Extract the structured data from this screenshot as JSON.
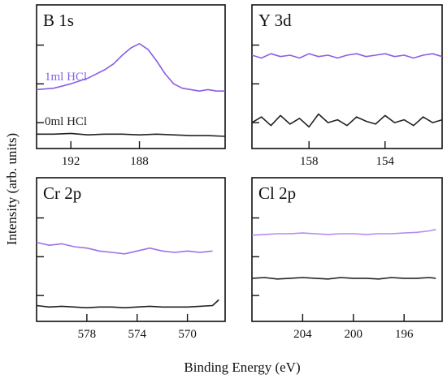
{
  "figure": {
    "ylabel": "Intensity (arb. units)",
    "xlabel": "Binding Energy (eV)"
  },
  "colors": {
    "purple": "#8a5fe6",
    "purple_light": "#b48cf0",
    "black": "#222222"
  },
  "chart_data": [
    {
      "type": "line",
      "title": "B 1s",
      "xlim": [
        194,
        183
      ],
      "ylim": [
        0,
        10
      ],
      "xticks": [
        192,
        188
      ],
      "annotations": [
        {
          "text": "1ml HCl",
          "color": "#8a5fe6"
        },
        {
          "text": "0ml  HCl",
          "color": "#222222"
        }
      ],
      "series": [
        {
          "name": "1ml HCl",
          "color": "#8a5fe6",
          "x": [
            194,
            193,
            192,
            191,
            190,
            189.5,
            189,
            188.5,
            188,
            187.5,
            187,
            186.5,
            186,
            185.5,
            185,
            184.5,
            184,
            183.5,
            183
          ],
          "y": [
            4.1,
            4.2,
            4.5,
            4.9,
            5.5,
            5.9,
            6.5,
            7.0,
            7.3,
            6.9,
            6.1,
            5.2,
            4.5,
            4.2,
            4.1,
            4.0,
            4.1,
            4.0,
            4.0
          ]
        },
        {
          "name": "0ml  HCl",
          "color": "#222222",
          "x": [
            194,
            193,
            192,
            191,
            190,
            189,
            188,
            187,
            186,
            185,
            184,
            183
          ],
          "y": [
            1.0,
            1.0,
            1.05,
            0.95,
            1.0,
            1.0,
            0.95,
            1.0,
            0.95,
            0.9,
            0.9,
            0.85
          ]
        }
      ]
    },
    {
      "type": "line",
      "title": "Y 3d",
      "xlim": [
        161,
        151
      ],
      "ylim": [
        0,
        10
      ],
      "xticks": [
        158,
        154
      ],
      "series": [
        {
          "name": "1ml HCl",
          "color": "#8a5fe6",
          "x": [
            161,
            160.5,
            160,
            159.5,
            159,
            158.5,
            158,
            157.5,
            157,
            156.5,
            156,
            155.5,
            155,
            154.5,
            154,
            153.5,
            153,
            152.5,
            152,
            151.5,
            151
          ],
          "y": [
            6.5,
            6.3,
            6.6,
            6.4,
            6.5,
            6.3,
            6.6,
            6.4,
            6.5,
            6.3,
            6.5,
            6.6,
            6.4,
            6.5,
            6.6,
            6.4,
            6.5,
            6.3,
            6.5,
            6.6,
            6.4
          ]
        },
        {
          "name": "0ml  HCl",
          "color": "#222222",
          "x": [
            161,
            160.5,
            160,
            159.5,
            159,
            158.5,
            158,
            157.5,
            157,
            156.5,
            156,
            155.5,
            155,
            154.5,
            154,
            153.5,
            153,
            152.5,
            152,
            151.5,
            151
          ],
          "y": [
            1.8,
            2.2,
            1.6,
            2.3,
            1.7,
            2.1,
            1.5,
            2.4,
            1.8,
            2.0,
            1.6,
            2.2,
            1.9,
            1.7,
            2.3,
            1.8,
            2.0,
            1.6,
            2.2,
            1.8,
            2.0
          ]
        }
      ]
    },
    {
      "type": "line",
      "title": "Cr 2p",
      "xlim": [
        582,
        567
      ],
      "ylim": [
        0,
        10
      ],
      "xticks": [
        578,
        574,
        570
      ],
      "series": [
        {
          "name": "1ml HCl",
          "color": "#a070e8",
          "x": [
            582,
            581,
            580,
            579,
            578,
            577,
            576,
            575,
            574,
            573,
            572,
            571,
            570,
            569,
            568
          ],
          "y": [
            5.5,
            5.3,
            5.4,
            5.2,
            5.1,
            4.9,
            4.8,
            4.7,
            4.9,
            5.1,
            4.9,
            4.8,
            4.9,
            4.8,
            4.9
          ]
        },
        {
          "name": "0ml  HCl",
          "color": "#222222",
          "x": [
            582,
            581,
            580,
            579,
            578,
            577,
            576,
            575,
            574,
            573,
            572,
            571,
            570,
            569,
            568,
            567.5
          ],
          "y": [
            1.1,
            1.0,
            1.05,
            1.0,
            0.95,
            1.0,
            1.0,
            0.95,
            1.0,
            1.05,
            1.0,
            1.0,
            1.0,
            1.05,
            1.1,
            1.5
          ]
        }
      ]
    },
    {
      "type": "line",
      "title": "Cl 2p",
      "xlim": [
        208,
        193
      ],
      "ylim": [
        0,
        10
      ],
      "xticks": [
        204,
        200,
        196
      ],
      "series": [
        {
          "name": "1ml HCl",
          "color": "#b48cf0",
          "x": [
            208,
            207,
            206,
            205,
            204,
            203,
            202,
            201,
            200,
            199,
            198,
            197,
            196,
            195,
            194,
            193.5
          ],
          "y": [
            6.0,
            6.05,
            6.1,
            6.1,
            6.15,
            6.1,
            6.05,
            6.1,
            6.1,
            6.05,
            6.1,
            6.1,
            6.15,
            6.2,
            6.3,
            6.4
          ]
        },
        {
          "name": "0ml  HCl",
          "color": "#222222",
          "x": [
            208,
            207,
            206,
            205,
            204,
            203,
            202,
            201,
            200,
            199,
            198,
            197,
            196,
            195,
            194,
            193.5
          ],
          "y": [
            3.0,
            3.05,
            2.95,
            3.0,
            3.05,
            3.0,
            2.95,
            3.05,
            3.0,
            3.0,
            2.95,
            3.05,
            3.0,
            3.0,
            3.05,
            3.0
          ]
        }
      ]
    }
  ]
}
